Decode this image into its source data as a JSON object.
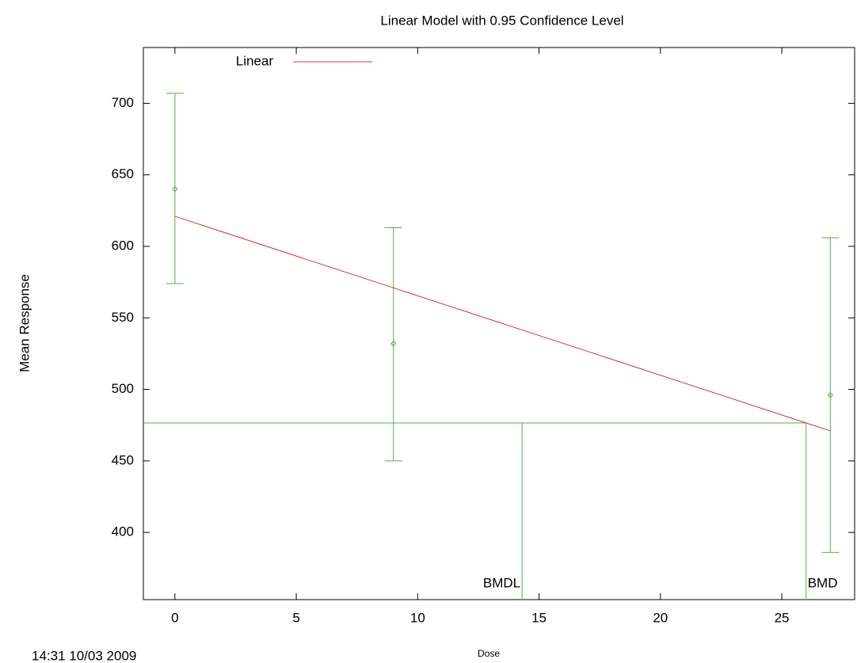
{
  "chart_data": {
    "type": "line",
    "title": "Linear Model with 0.95 Confidence Level",
    "x_label": "Dose",
    "y_label": "Mean Response",
    "xlim": [
      -1.3,
      28
    ],
    "ylim": [
      353,
      739
    ],
    "xticks": [
      0,
      5,
      10,
      15,
      20,
      25
    ],
    "yticks": [
      400,
      450,
      500,
      550,
      600,
      650,
      700
    ],
    "series": [
      {
        "name": "Linear",
        "color": "#e03030",
        "x": [
          0,
          27
        ],
        "values": [
          621,
          471
        ]
      }
    ],
    "points": {
      "color": "#55b04a",
      "x": [
        0,
        9,
        27
      ],
      "values": [
        640,
        532,
        496
      ],
      "lower": [
        574,
        450,
        386
      ],
      "upper": [
        707,
        613,
        606
      ]
    },
    "bmr_level": 476.5,
    "bmdl": 14.3,
    "bmd": 26.0,
    "bmdl_label": "BMDL",
    "bmd_label": "BMD",
    "timestamp": "14:31 10/03 2009"
  }
}
